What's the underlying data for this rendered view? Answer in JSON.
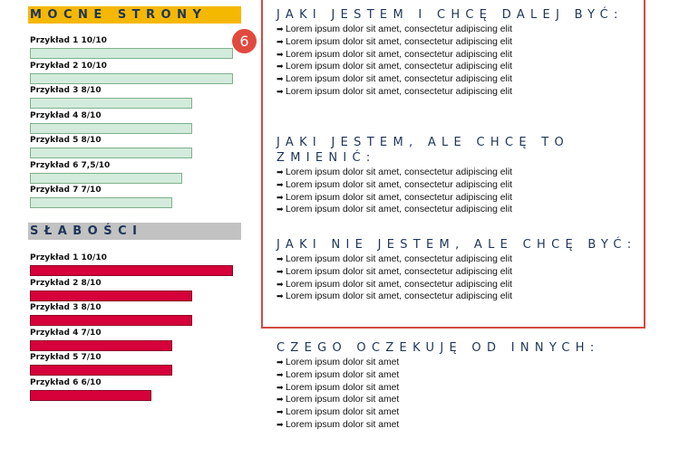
{
  "strengths": {
    "title": "MOCNE STRONY",
    "items": [
      {
        "label": "Przykład 1 10/10",
        "value": 10
      },
      {
        "label": "Przykład 2 10/10",
        "value": 10
      },
      {
        "label": "Przykład 3 8/10",
        "value": 8
      },
      {
        "label": "Przykład 4 8/10",
        "value": 8
      },
      {
        "label": "Przykład 5 8/10",
        "value": 8
      },
      {
        "label": "Przykład 6 7,5/10",
        "value": 7.5
      },
      {
        "label": "Przykład 7 7/10",
        "value": 7
      }
    ]
  },
  "weaknesses": {
    "title": "SŁABOŚCI",
    "items": [
      {
        "label": "Przykład 1 10/10",
        "value": 10
      },
      {
        "label": "Przykład 2 8/10",
        "value": 8
      },
      {
        "label": "Przykład 3 8/10",
        "value": 8
      },
      {
        "label": "Przykład 4 7/10",
        "value": 7
      },
      {
        "label": "Przykład 5 7/10",
        "value": 7
      },
      {
        "label": "Przykład 6 6/10",
        "value": 6
      }
    ]
  },
  "badge": "6",
  "blocks": [
    {
      "title": "JAKI JESTEM I CHCĘ DALEJ BYĆ:",
      "bullets": [
        "Lorem ipsum dolor sit amet, consectetur adipiscing elit",
        "Lorem ipsum dolor sit amet, consectetur adipiscing elit",
        "Lorem ipsum dolor sit amet, consectetur adipiscing elit",
        "Lorem ipsum dolor sit amet, consectetur adipiscing elit",
        "Lorem ipsum dolor sit amet, consectetur adipiscing elit",
        "Lorem ipsum dolor sit amet, consectetur adipiscing elit"
      ]
    },
    {
      "title": "JAKI JESTEM, ALE CHCĘ TO ZMIENIĆ:",
      "bullets": [
        "Lorem ipsum dolor sit amet, consectetur adipiscing elit",
        "Lorem ipsum dolor sit amet, consectetur adipiscing elit",
        "Lorem ipsum dolor sit amet, consectetur adipiscing elit",
        "Lorem ipsum dolor sit amet, consectetur adipiscing elit"
      ]
    },
    {
      "title": "JAKI NIE JESTEM, ALE CHCĘ BYĆ:",
      "bullets": [
        "Lorem ipsum dolor sit amet, consectetur adipiscing elit",
        "Lorem ipsum dolor sit amet, consectetur adipiscing elit",
        "Lorem ipsum dolor sit amet, consectetur adipiscing elit",
        "Lorem ipsum dolor sit amet, consectetur adipiscing elit"
      ]
    },
    {
      "title": "CZEGO OCZEKUJĘ OD INNYCH:",
      "bullets": [
        "Lorem ipsum dolor sit amet",
        "Lorem ipsum dolor sit amet",
        "Lorem ipsum dolor sit amet",
        "Lorem ipsum dolor sit amet",
        "Lorem ipsum dolor sit amet",
        "Lorem ipsum dolor sit amet"
      ]
    }
  ],
  "colors": {
    "strength_header": "#f5b800",
    "weakness_header": "#c2c2c2",
    "strength_bar": "#d3ebdc",
    "weakness_bar": "#d6003a",
    "title_text": "#1e3558",
    "box_border": "#d24a43",
    "badge": "#e04a3f"
  },
  "icons": {
    "bullet": "right-arrow-circle-icon"
  }
}
